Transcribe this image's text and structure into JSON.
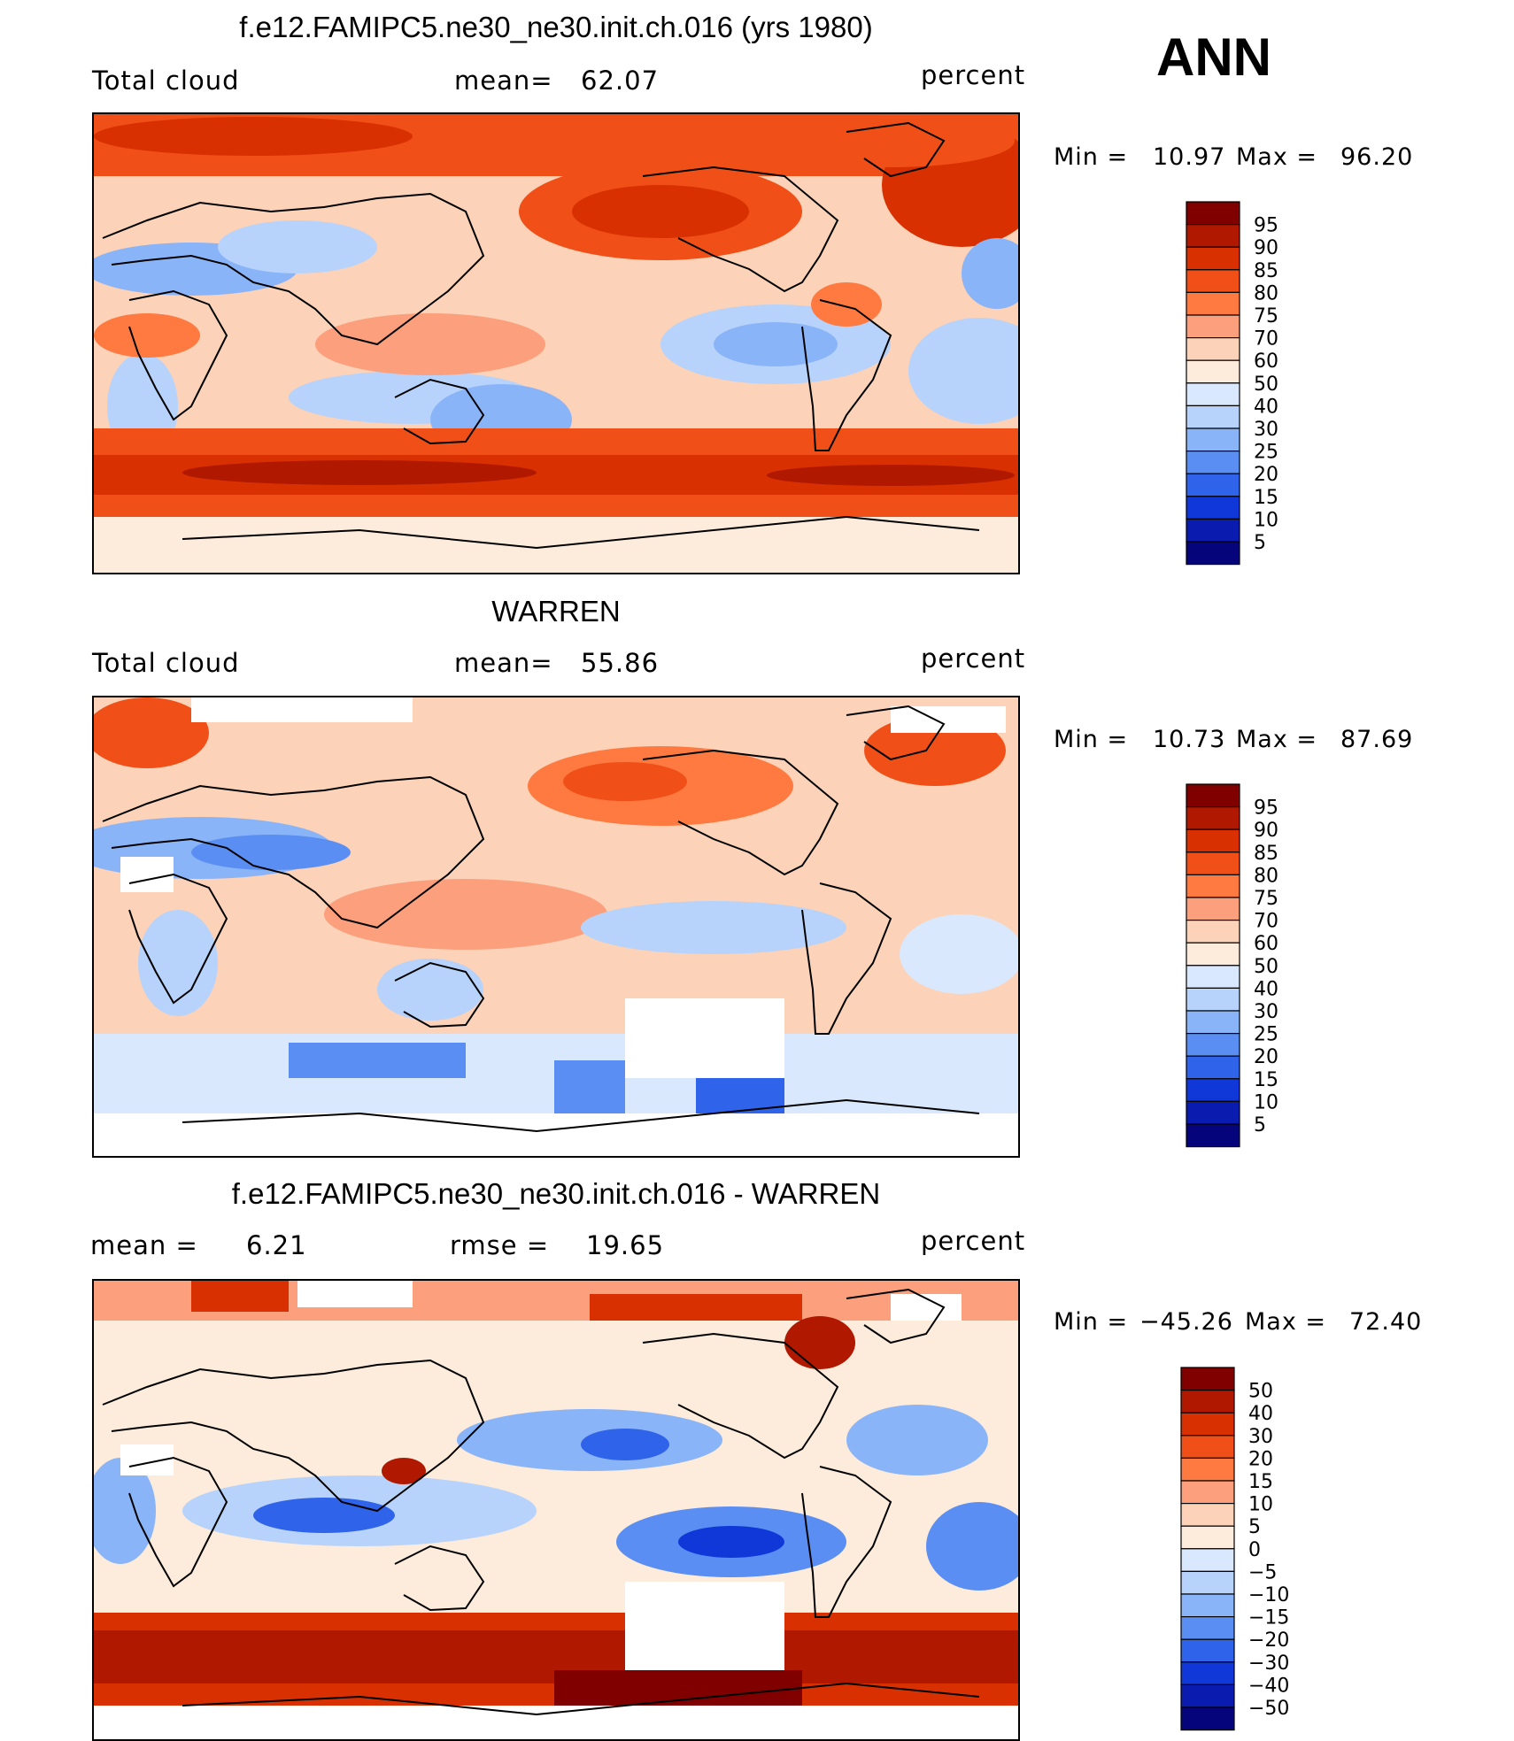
{
  "season": "ANN",
  "colors": {
    "warm_scale": [
      "#800000",
      "#b01800",
      "#d83000",
      "#f05018",
      "#ff7a40",
      "#fc9f7c",
      "#fcd2b8",
      "#fdebdb"
    ],
    "cool_scale": [
      "#d9e8fc",
      "#b7d3fb",
      "#8ab4f8",
      "#5a8ef2",
      "#2f63ea",
      "#1038d8",
      "#0a1cb0",
      "#06047a"
    ],
    "ocean_mid": "#fcd2b8",
    "coast": "#000000"
  },
  "panels": [
    {
      "title": "f.e12.FAMIPC5.ne30_ne30.init.ch.016 (yrs 1980)",
      "left_label": "Total cloud",
      "mid_label": "mean=",
      "mid_value": "62.07",
      "units": "percent",
      "min_label": "Min =",
      "min_value": "10.97",
      "max_label": "Max =",
      "max_value": "96.20",
      "colorbar_ticks": [
        "95",
        "90",
        "85",
        "80",
        "75",
        "70",
        "60",
        "50",
        "40",
        "30",
        "25",
        "20",
        "15",
        "10",
        "5"
      ]
    },
    {
      "title": "WARREN",
      "left_label": "Total cloud",
      "mid_label": "mean=",
      "mid_value": "55.86",
      "units": "percent",
      "min_label": "Min =",
      "min_value": "10.73",
      "max_label": "Max =",
      "max_value": "87.69",
      "colorbar_ticks": [
        "95",
        "90",
        "85",
        "80",
        "75",
        "70",
        "60",
        "50",
        "40",
        "30",
        "25",
        "20",
        "15",
        "10",
        "5"
      ]
    },
    {
      "title": "f.e12.FAMIPC5.ne30_ne30.init.ch.016 - WARREN",
      "left_label": "mean =",
      "left_value": "6.21",
      "mid_label": "rmse =",
      "mid_value": "19.65",
      "units": "percent",
      "min_label": "Min =",
      "min_value": "−45.26",
      "max_label": "Max =",
      "max_value": "72.40",
      "colorbar_ticks": [
        "50",
        "40",
        "30",
        "20",
        "15",
        "10",
        "5",
        "0",
        "−5",
        "−10",
        "−15",
        "−20",
        "−30",
        "−40",
        "−50"
      ]
    }
  ],
  "chart_data": [
    {
      "type": "heatmap",
      "title": "f.e12.FAMIPC5.ne30_ne30.init.ch.016 (yrs 1980)",
      "variable": "Total cloud",
      "units": "percent",
      "mean": 62.07,
      "min": 10.97,
      "max": 96.2,
      "contour_levels": [
        5,
        10,
        15,
        20,
        25,
        30,
        40,
        50,
        60,
        70,
        75,
        80,
        85,
        90,
        95
      ]
    },
    {
      "type": "heatmap",
      "title": "WARREN",
      "variable": "Total cloud",
      "units": "percent",
      "mean": 55.86,
      "min": 10.73,
      "max": 87.69,
      "contour_levels": [
        5,
        10,
        15,
        20,
        25,
        30,
        40,
        50,
        60,
        70,
        75,
        80,
        85,
        90,
        95
      ]
    },
    {
      "type": "heatmap",
      "title": "f.e12.FAMIPC5.ne30_ne30.init.ch.016 - WARREN",
      "units": "percent",
      "mean": 6.21,
      "rmse": 19.65,
      "min": -45.26,
      "max": 72.4,
      "contour_levels": [
        -50,
        -40,
        -30,
        -20,
        -15,
        -10,
        -5,
        0,
        5,
        10,
        15,
        20,
        30,
        40,
        50
      ]
    }
  ]
}
